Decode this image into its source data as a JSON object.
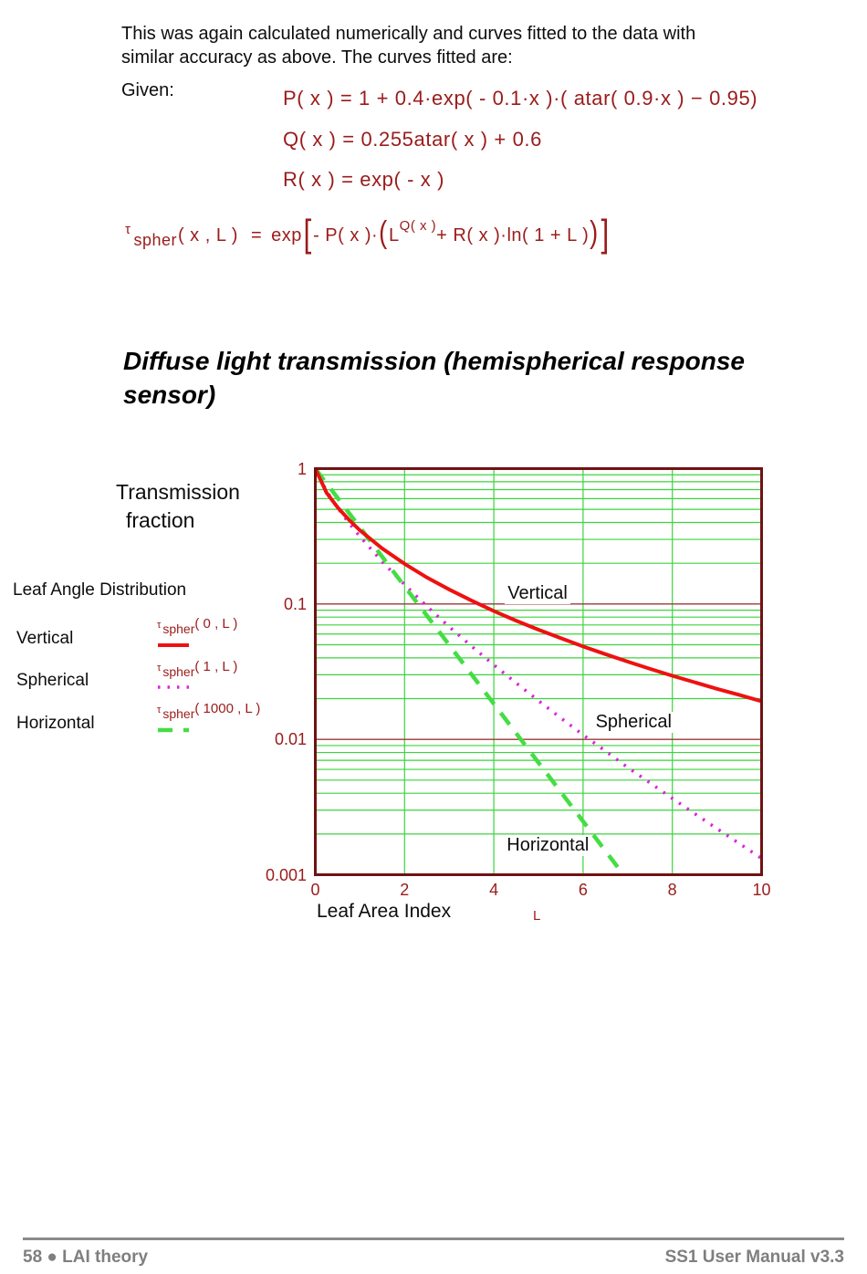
{
  "intro": {
    "line1": "This was again calculated numerically and curves fitted to the data with",
    "line2": "similar accuracy as above. The curves fitted are:"
  },
  "given_label": "Given:",
  "formulas": {
    "p": "P( x )  =  1 + 0.4·exp( - 0.1·x )·( atar( 0.9·x )  −  0.95)",
    "q": "Q( x )  =  0.255atar( x ) + 0.6",
    "r": "R( x )  =  exp( - x )",
    "tau": {
      "symbol": "τ",
      "subscript": "spher",
      "args": "( x , L )",
      "equals": "=",
      "func": "exp",
      "open_bracket": "[",
      "term1": "- P( x )·",
      "open_paren": "(",
      "base": "L",
      "superscript": "Q( x )",
      "term2": " + R( x )·ln( 1 + L )",
      "close_paren": ")",
      "close_bracket": "]"
    }
  },
  "section_title": {
    "line1": "Diffuse light transmission (hemispherical response",
    "line2": "sensor)"
  },
  "axis": {
    "y_title_line1": "Transmission",
    "y_title_line2": "fraction",
    "x_title": "Leaf Area Index",
    "x_var": "L"
  },
  "legend": {
    "title": "Leaf Angle Distribution",
    "items": [
      {
        "label": "Vertical",
        "tau": "τ",
        "sub": "spher",
        "args": "( 0 , L )"
      },
      {
        "label": "Spherical",
        "tau": "τ",
        "sub": "spher",
        "args": "( 1 , L )"
      },
      {
        "label": "Horizontal",
        "tau": "τ",
        "sub": "spher",
        "args": "( 1000 , L )"
      }
    ]
  },
  "chart_data": {
    "type": "line",
    "title": "Diffuse light transmission (hemispherical response sensor)",
    "xlabel": "Leaf Area Index",
    "x_variable": "L",
    "ylabel": "Transmission fraction",
    "x_range": [
      0,
      10
    ],
    "y_range": [
      0.001,
      1
    ],
    "y_scale": "log",
    "x_ticks": [
      0,
      2,
      4,
      6,
      8,
      10
    ],
    "y_ticks": [
      1,
      0.1,
      0.01,
      0.001
    ],
    "y_tick_labels": [
      "1",
      "0.1",
      "0.01",
      "0.001"
    ],
    "grid": {
      "x_lines": [
        2,
        4,
        6,
        8
      ],
      "y_minor_multipliers": [
        0.9,
        0.8,
        0.7,
        0.6,
        0.5,
        0.4,
        0.3,
        0.2
      ],
      "y_major": [
        0.1,
        0.01
      ]
    },
    "x": [
      0,
      0.25,
      0.5,
      0.75,
      1,
      1.5,
      2,
      2.5,
      3,
      3.5,
      4,
      4.5,
      5,
      5.5,
      6,
      6.5,
      7,
      7.5,
      8,
      8.5,
      9,
      9.5,
      10
    ],
    "series": [
      {
        "name": "Vertical",
        "formula": "τ spher(0,L)",
        "color": "#ee1111",
        "style": "solid",
        "values": [
          1,
          0.665,
          0.517,
          0.42,
          0.35,
          0.257,
          0.198,
          0.157,
          0.128,
          0.106,
          0.0887,
          0.0753,
          0.0646,
          0.0559,
          0.0486,
          0.0426,
          0.0375,
          0.0332,
          0.0295,
          0.0264,
          0.0236,
          0.0213,
          0.0191
        ]
      },
      {
        "name": "Spherical",
        "formula": "τ spher(1,L)",
        "color": "#dd22dd",
        "style": "dotted",
        "values": [
          1,
          0.684,
          0.513,
          0.398,
          0.315,
          0.205,
          0.139,
          0.0961,
          0.0679,
          0.0488,
          0.0355,
          0.0261,
          0.0193,
          0.0144,
          0.0108,
          0.0082,
          0.0062,
          0.00477,
          0.00366,
          0.00283,
          0.00219,
          0.0017,
          0.00132
        ]
      },
      {
        "name": "Horizontal",
        "formula": "τ spher(1000,L)",
        "color": "#44dd44",
        "style": "dashed",
        "values": [
          1,
          0.779,
          0.607,
          0.472,
          0.368,
          0.223,
          0.135,
          0.0821,
          0.0498,
          0.0302,
          0.0183,
          0.0111,
          0.00674,
          0.00409,
          0.00248,
          0.0015,
          0.00091,
          null,
          null,
          null,
          null,
          null,
          null
        ]
      }
    ],
    "annotations": [
      {
        "text": "Vertical",
        "x": 4.31,
        "y": 0.143
      },
      {
        "text": "Spherical",
        "x": 6.28,
        "y": 0.0159
      },
      {
        "text": "Horizontal",
        "x": 4.29,
        "y": 0.00197
      }
    ],
    "colors": {
      "frame": "#701212",
      "grid_green": "#3cd43c",
      "major_red": "#9c3a3a"
    }
  },
  "footer": {
    "left": "58 ● LAI theory",
    "right": "SS1 User Manual v3.3"
  }
}
